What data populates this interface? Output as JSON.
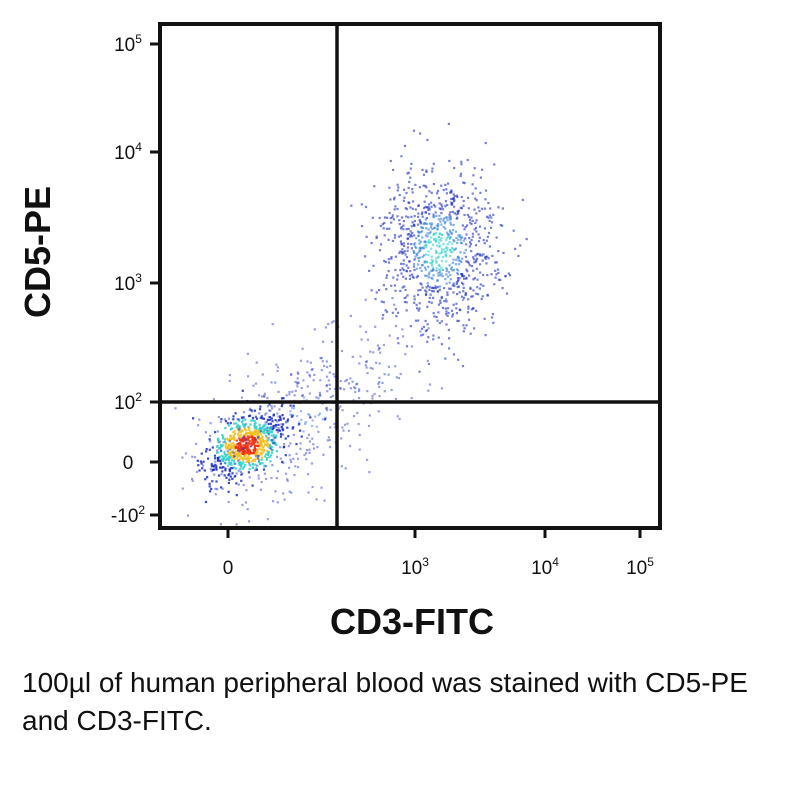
{
  "chart_data": {
    "type": "scatter",
    "title": "",
    "xlabel": "CD3-FITC",
    "ylabel": "CD5-PE",
    "x_scale": "biexponential",
    "y_scale": "biexponential",
    "xlim": [
      -100,
      100000
    ],
    "ylim": [
      -100,
      100000
    ],
    "x_ticks": [
      {
        "value": 0,
        "base": "0",
        "exp": ""
      },
      {
        "value": 1000,
        "base": "10",
        "exp": "3"
      },
      {
        "value": 10000,
        "base": "10",
        "exp": "4"
      },
      {
        "value": 100000,
        "base": "10",
        "exp": "5"
      }
    ],
    "y_ticks": [
      {
        "value": -100,
        "base": "-10",
        "exp": "2"
      },
      {
        "value": 0,
        "base": "0",
        "exp": ""
      },
      {
        "value": 100,
        "base": "10",
        "exp": "2"
      },
      {
        "value": 1000,
        "base": "10",
        "exp": "3"
      },
      {
        "value": 10000,
        "base": "10",
        "exp": "4"
      },
      {
        "value": 100000,
        "base": "10",
        "exp": "5"
      }
    ],
    "quadrant_gates": {
      "x": 300,
      "y": 100
    },
    "populations": [
      {
        "x_center": 50,
        "y_center": 30,
        "density": "high"
      },
      {
        "x_center": 1500,
        "y_center": 1800,
        "density": "medium"
      },
      {
        "x_center": 200,
        "y_center": 80,
        "density": "low"
      }
    ],
    "grid": false,
    "legend": "none"
  },
  "caption": "100µl of human peripheral blood was stained with CD5-PE and CD3-FITC.",
  "colors": {
    "density_low": "#1a2cc0",
    "density_mid": "#2ad0c8",
    "density_high": "#f03010",
    "frame": "#111111"
  }
}
